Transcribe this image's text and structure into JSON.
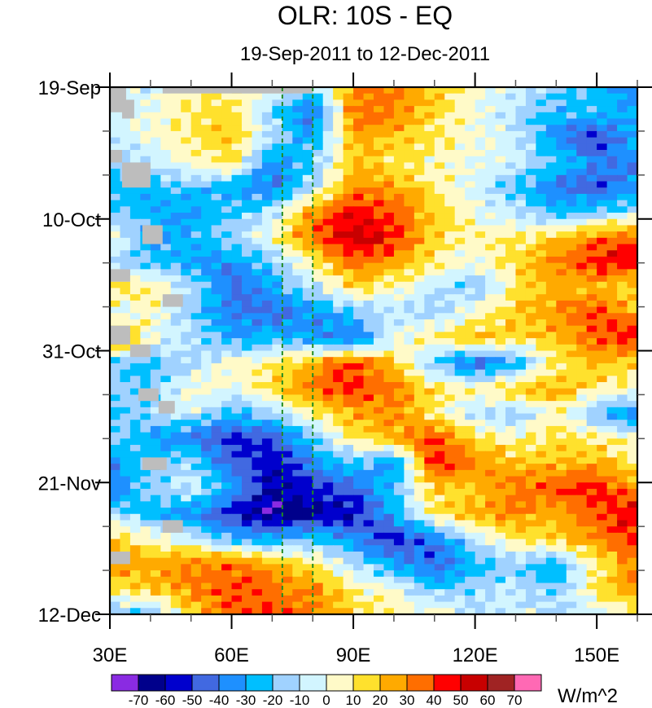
{
  "chart_data": {
    "type": "heatmap",
    "title": "OLR: 10S - EQ",
    "subtitle": "19-Sep-2011 to 12-Dec-2011",
    "xlabel": "",
    "ylabel": "",
    "x_axis": {
      "range_deg_east": [
        30,
        160
      ],
      "major_ticks": [
        30,
        60,
        90,
        120,
        150
      ],
      "major_tick_labels": [
        "30E",
        "60E",
        "90E",
        "120E",
        "150E"
      ],
      "minor_tick_step_deg": 10
    },
    "y_axis": {
      "range_days_since_start": [
        0,
        84
      ],
      "direction": "top-to-bottom",
      "major_ticks": [
        0,
        21,
        42,
        63,
        84
      ],
      "major_tick_labels": [
        "19-Sep",
        "10-Oct",
        "31-Oct",
        "21-Nov",
        "12-Dec"
      ],
      "minor_tick_step_days": 7
    },
    "reference_lines": [
      {
        "longitude": 72.5,
        "style": "dashed",
        "color": "#228b22"
      },
      {
        "longitude": 80,
        "style": "dashed",
        "color": "#228b22"
      }
    ],
    "colorbar": {
      "levels": [
        -70,
        -60,
        -50,
        -40,
        -30,
        -20,
        -10,
        0,
        10,
        20,
        30,
        40,
        50,
        60,
        70
      ],
      "colors": [
        "#8a2be2",
        "#00008b",
        "#0000cd",
        "#4169e1",
        "#1e90ff",
        "#00bfff",
        "#a0d2ff",
        "#d2f5ff",
        "#fffac8",
        "#ffe12d",
        "#ffaa00",
        "#ff6e00",
        "#ff0000",
        "#c80000",
        "#a02323",
        "#ff69b4"
      ],
      "units": "W/m^2",
      "orientation": "horizontal",
      "placement": "bottom"
    },
    "missing_color": "#bdbdbd",
    "grid": false,
    "field_description": "OLR anomaly averaged 10S-EQ, longitude vs time; estimated coarse grid of values (W/m^2)",
    "grid_lons": [
      30,
      40,
      50,
      60,
      70,
      80,
      90,
      100,
      110,
      120,
      130,
      140,
      150,
      160
    ],
    "grid_days": [
      0,
      4,
      8,
      12,
      16,
      20,
      24,
      28,
      32,
      36,
      40,
      44,
      48,
      52,
      56,
      60,
      64,
      68,
      72,
      76,
      80,
      84
    ],
    "values": [
      [
        -5,
        -5,
        5,
        10,
        5,
        -15,
        30,
        35,
        20,
        5,
        -5,
        -20,
        -25,
        -35
      ],
      [
        -5,
        0,
        10,
        15,
        -15,
        -45,
        35,
        30,
        15,
        0,
        -10,
        -25,
        -20,
        -30
      ],
      [
        -10,
        5,
        10,
        20,
        -10,
        -30,
        25,
        20,
        10,
        5,
        -10,
        -35,
        -55,
        -25
      ],
      [
        -15,
        -10,
        5,
        15,
        -40,
        -20,
        20,
        15,
        5,
        0,
        -5,
        -20,
        -35,
        -40
      ],
      [
        -30,
        -25,
        -20,
        -30,
        -40,
        -10,
        30,
        25,
        10,
        -5,
        -20,
        -40,
        -50,
        -30
      ],
      [
        -20,
        -25,
        -35,
        -20,
        -10,
        30,
        50,
        40,
        20,
        0,
        -10,
        -25,
        -20,
        -10
      ],
      [
        10,
        -30,
        -25,
        -15,
        5,
        35,
        55,
        45,
        15,
        5,
        10,
        20,
        35,
        40
      ],
      [
        -10,
        -20,
        -30,
        -35,
        -20,
        10,
        35,
        25,
        10,
        0,
        15,
        30,
        45,
        50
      ],
      [
        15,
        10,
        -10,
        -45,
        -30,
        -10,
        15,
        5,
        -10,
        -20,
        10,
        25,
        20,
        10
      ],
      [
        -5,
        5,
        -20,
        -40,
        -45,
        -35,
        -20,
        -10,
        -15,
        5,
        20,
        30,
        40,
        25
      ],
      [
        40,
        0,
        -10,
        -30,
        -25,
        -30,
        -45,
        0,
        10,
        20,
        15,
        20,
        40,
        45
      ],
      [
        -20,
        -25,
        -10,
        5,
        10,
        25,
        40,
        20,
        -20,
        -45,
        -30,
        10,
        20,
        15
      ],
      [
        -10,
        -20,
        5,
        0,
        15,
        35,
        45,
        30,
        15,
        5,
        20,
        25,
        10,
        5
      ],
      [
        -25,
        -15,
        -5,
        -25,
        -15,
        10,
        25,
        30,
        10,
        -10,
        -15,
        5,
        -20,
        -40
      ],
      [
        -10,
        -30,
        -40,
        -55,
        -50,
        -20,
        10,
        25,
        40,
        15,
        5,
        15,
        10,
        5
      ],
      [
        -35,
        -20,
        -10,
        -45,
        -60,
        -40,
        -20,
        -35,
        45,
        30,
        20,
        20,
        25,
        10
      ],
      [
        -40,
        -15,
        -5,
        -30,
        -60,
        -50,
        -45,
        -20,
        15,
        20,
        35,
        40,
        45,
        30
      ],
      [
        -10,
        -25,
        -35,
        -55,
        -70,
        -65,
        -60,
        -30,
        10,
        25,
        30,
        20,
        40,
        50
      ],
      [
        20,
        5,
        -5,
        -25,
        -30,
        -20,
        -35,
        -55,
        -40,
        -10,
        15,
        20,
        30,
        45
      ],
      [
        30,
        25,
        30,
        35,
        25,
        10,
        -10,
        -30,
        -45,
        -25,
        -15,
        -30,
        10,
        35
      ],
      [
        10,
        20,
        30,
        40,
        35,
        30,
        10,
        0,
        -20,
        -15,
        -10,
        -20,
        15,
        30
      ],
      [
        -15,
        -20,
        15,
        35,
        40,
        35,
        15,
        10,
        5,
        -10,
        -5,
        -10,
        -5,
        10
      ]
    ],
    "missing_regions": [
      {
        "lon": [
          30,
          34
        ],
        "days": [
          0,
          4
        ]
      },
      {
        "lon": [
          33,
          36
        ],
        "days": [
          2,
          5
        ]
      },
      {
        "lon": [
          43,
          55
        ],
        "days": [
          0,
          1
        ]
      },
      {
        "lon": [
          55,
          80
        ],
        "days": [
          0,
          1
        ]
      },
      {
        "lon": [
          30,
          33
        ],
        "days": [
          10,
          12
        ]
      },
      {
        "lon": [
          33,
          40
        ],
        "days": [
          12,
          16
        ]
      },
      {
        "lon": [
          38,
          43
        ],
        "days": [
          22,
          25
        ]
      },
      {
        "lon": [
          30,
          35
        ],
        "days": [
          29,
          31
        ]
      },
      {
        "lon": [
          43,
          48
        ],
        "days": [
          33,
          35
        ]
      },
      {
        "lon": [
          30,
          35
        ],
        "days": [
          38,
          41
        ]
      },
      {
        "lon": [
          35,
          40
        ],
        "days": [
          41,
          43
        ]
      },
      {
        "lon": [
          37,
          42
        ],
        "days": [
          48,
          50
        ]
      },
      {
        "lon": [
          42,
          46
        ],
        "days": [
          50,
          52
        ]
      },
      {
        "lon": [
          38,
          44
        ],
        "days": [
          59,
          61
        ]
      },
      {
        "lon": [
          43,
          48
        ],
        "days": [
          69,
          71
        ]
      },
      {
        "lon": [
          30,
          35
        ],
        "days": [
          74,
          76
        ]
      }
    ]
  }
}
